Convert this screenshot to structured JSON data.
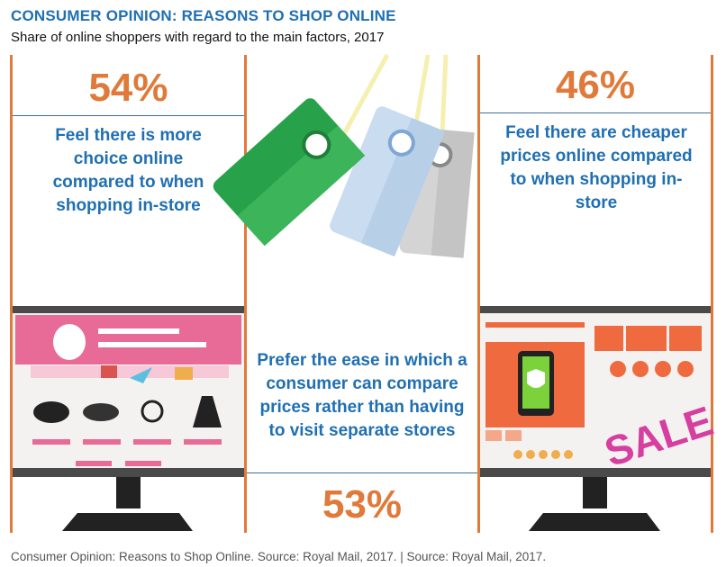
{
  "title": "CONSUMER OPINION: REASONS TO SHOP ONLINE",
  "subtitle": "Share of online shoppers with regard to the main factors, 2017",
  "footer": "Consumer Opinion: Reasons to Shop Online. Source: Royal Mail, 2017. | Source: Royal Mail, 2017.",
  "colors": {
    "accent": "#e07a3a",
    "text_blue": "#1f6fb2",
    "divider": "#3b6f9c"
  },
  "icons": [
    "price-tags-illustration",
    "online-fashion-store-monitor-illustration",
    "online-sale-store-monitor-illustration"
  ],
  "chart_data": {
    "type": "table",
    "categories": [
      "Feel there is more choice online compared to when shopping in-store",
      "Prefer the ease in which a consumer can compare prices rather than having to visit separate stores",
      "Feel there are cheaper prices online compared to when shopping in-store"
    ],
    "values": [
      54,
      53,
      46
    ],
    "value_labels": [
      "54%",
      "53%",
      "46%"
    ],
    "sale_label": "SALE"
  }
}
